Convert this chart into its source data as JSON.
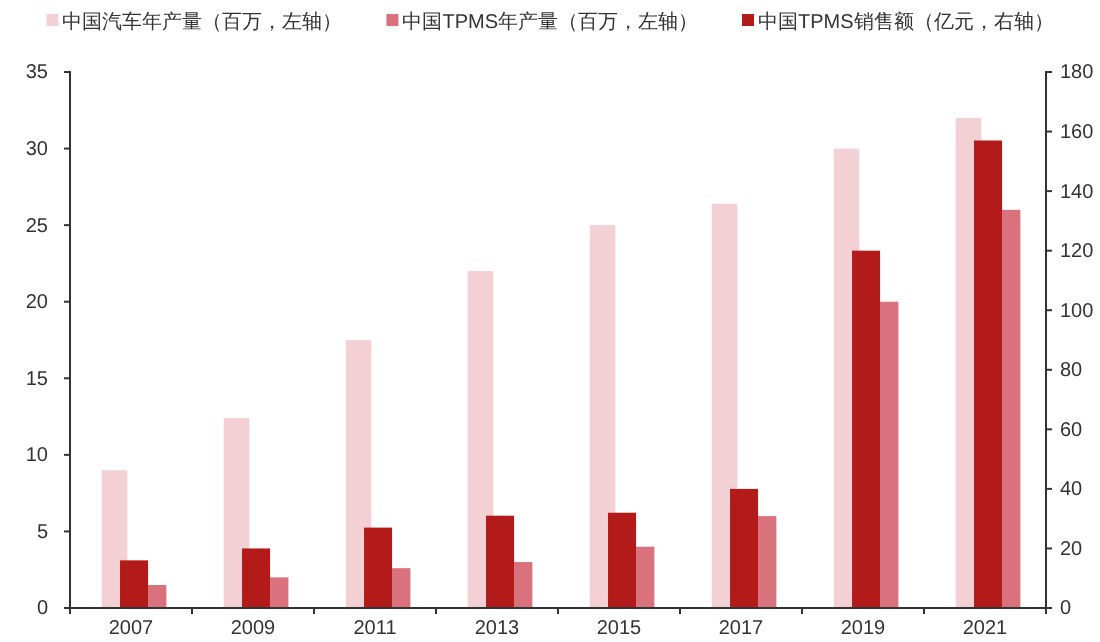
{
  "chart_data": {
    "type": "bar",
    "categories": [
      "2007",
      "2009",
      "2011",
      "2013",
      "2015",
      "2017",
      "2019",
      "2021"
    ],
    "series": [
      {
        "name": "中国汽车年产量（百万，左轴）",
        "color": "#f2d0d3",
        "values": [
          9.0,
          12.4,
          17.5,
          22.0,
          25.0,
          26.4,
          30.0,
          32.0
        ]
      },
      {
        "name": "中国TPMS年产量（百万，左轴）",
        "color": "#d9727c",
        "values": [
          1.5,
          2.0,
          2.6,
          3.0,
          4.0,
          6.0,
          20.0,
          26.0
        ]
      },
      {
        "name": "中国TPMS销售额（亿元，右轴）",
        "color": "#b31b1b",
        "axis": "y2",
        "values": [
          16,
          20,
          27,
          31,
          32,
          40,
          120,
          157
        ]
      }
    ],
    "ylim": [
      0,
      35
    ],
    "yticks": [
      0,
      5,
      10,
      15,
      20,
      25,
      30,
      35
    ],
    "y2lim": [
      0,
      180
    ],
    "y2ticks": [
      0,
      20,
      40,
      60,
      80,
      100,
      120,
      140,
      160,
      180
    ],
    "legend": "top",
    "grid": false
  }
}
